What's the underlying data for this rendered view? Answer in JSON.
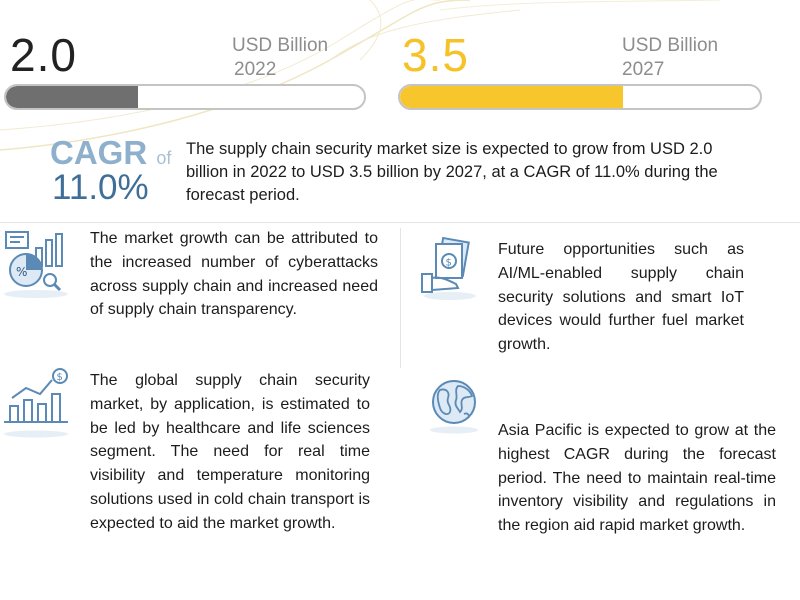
{
  "market_2022": {
    "value": "2.0",
    "unit": "USD Billion",
    "year": "2022",
    "bar_fill_percent": 37
  },
  "market_2027": {
    "value": "3.5",
    "unit": "USD Billion",
    "year": "2027",
    "bar_fill_percent": 62
  },
  "cagr": {
    "label": "CAGR",
    "of": "of",
    "value": "11.0%",
    "summary": "The supply chain security market size is expected to grow from USD 2.0 billion in 2022 to USD 3.5 billion by 2027, at a CAGR of 11.0% during the forecast period."
  },
  "insights": {
    "growth_drivers": "The market growth can be attributed to the increased number of cyberattacks across supply chain and increased need of supply chain transparency.",
    "opportunities": "Future opportunities such as AI/ML-enabled supply chain security solutions and smart IoT devices would further fuel market growth.",
    "application": "The global supply chain security market, by application, is estimated to be led by healthcare and life sciences segment. The need for real time visibility and temperature monitoring solutions used in cold chain transport is expected to aid the market growth.",
    "region": "Asia Pacific is expected to grow at the highest CAGR during the forecast period. The need to maintain real-time inventory visibility and regulations in the region aid rapid market growth."
  },
  "colors": {
    "bar_2022": "#6f6f6f",
    "bar_2027": "#f7c52c",
    "cagr_accent": "#3f6f98",
    "icon_blue": "#5a8ab5"
  },
  "icons": [
    "analytics-chart-icon",
    "money-hand-icon",
    "growth-bar-chart-icon",
    "globe-icon"
  ]
}
